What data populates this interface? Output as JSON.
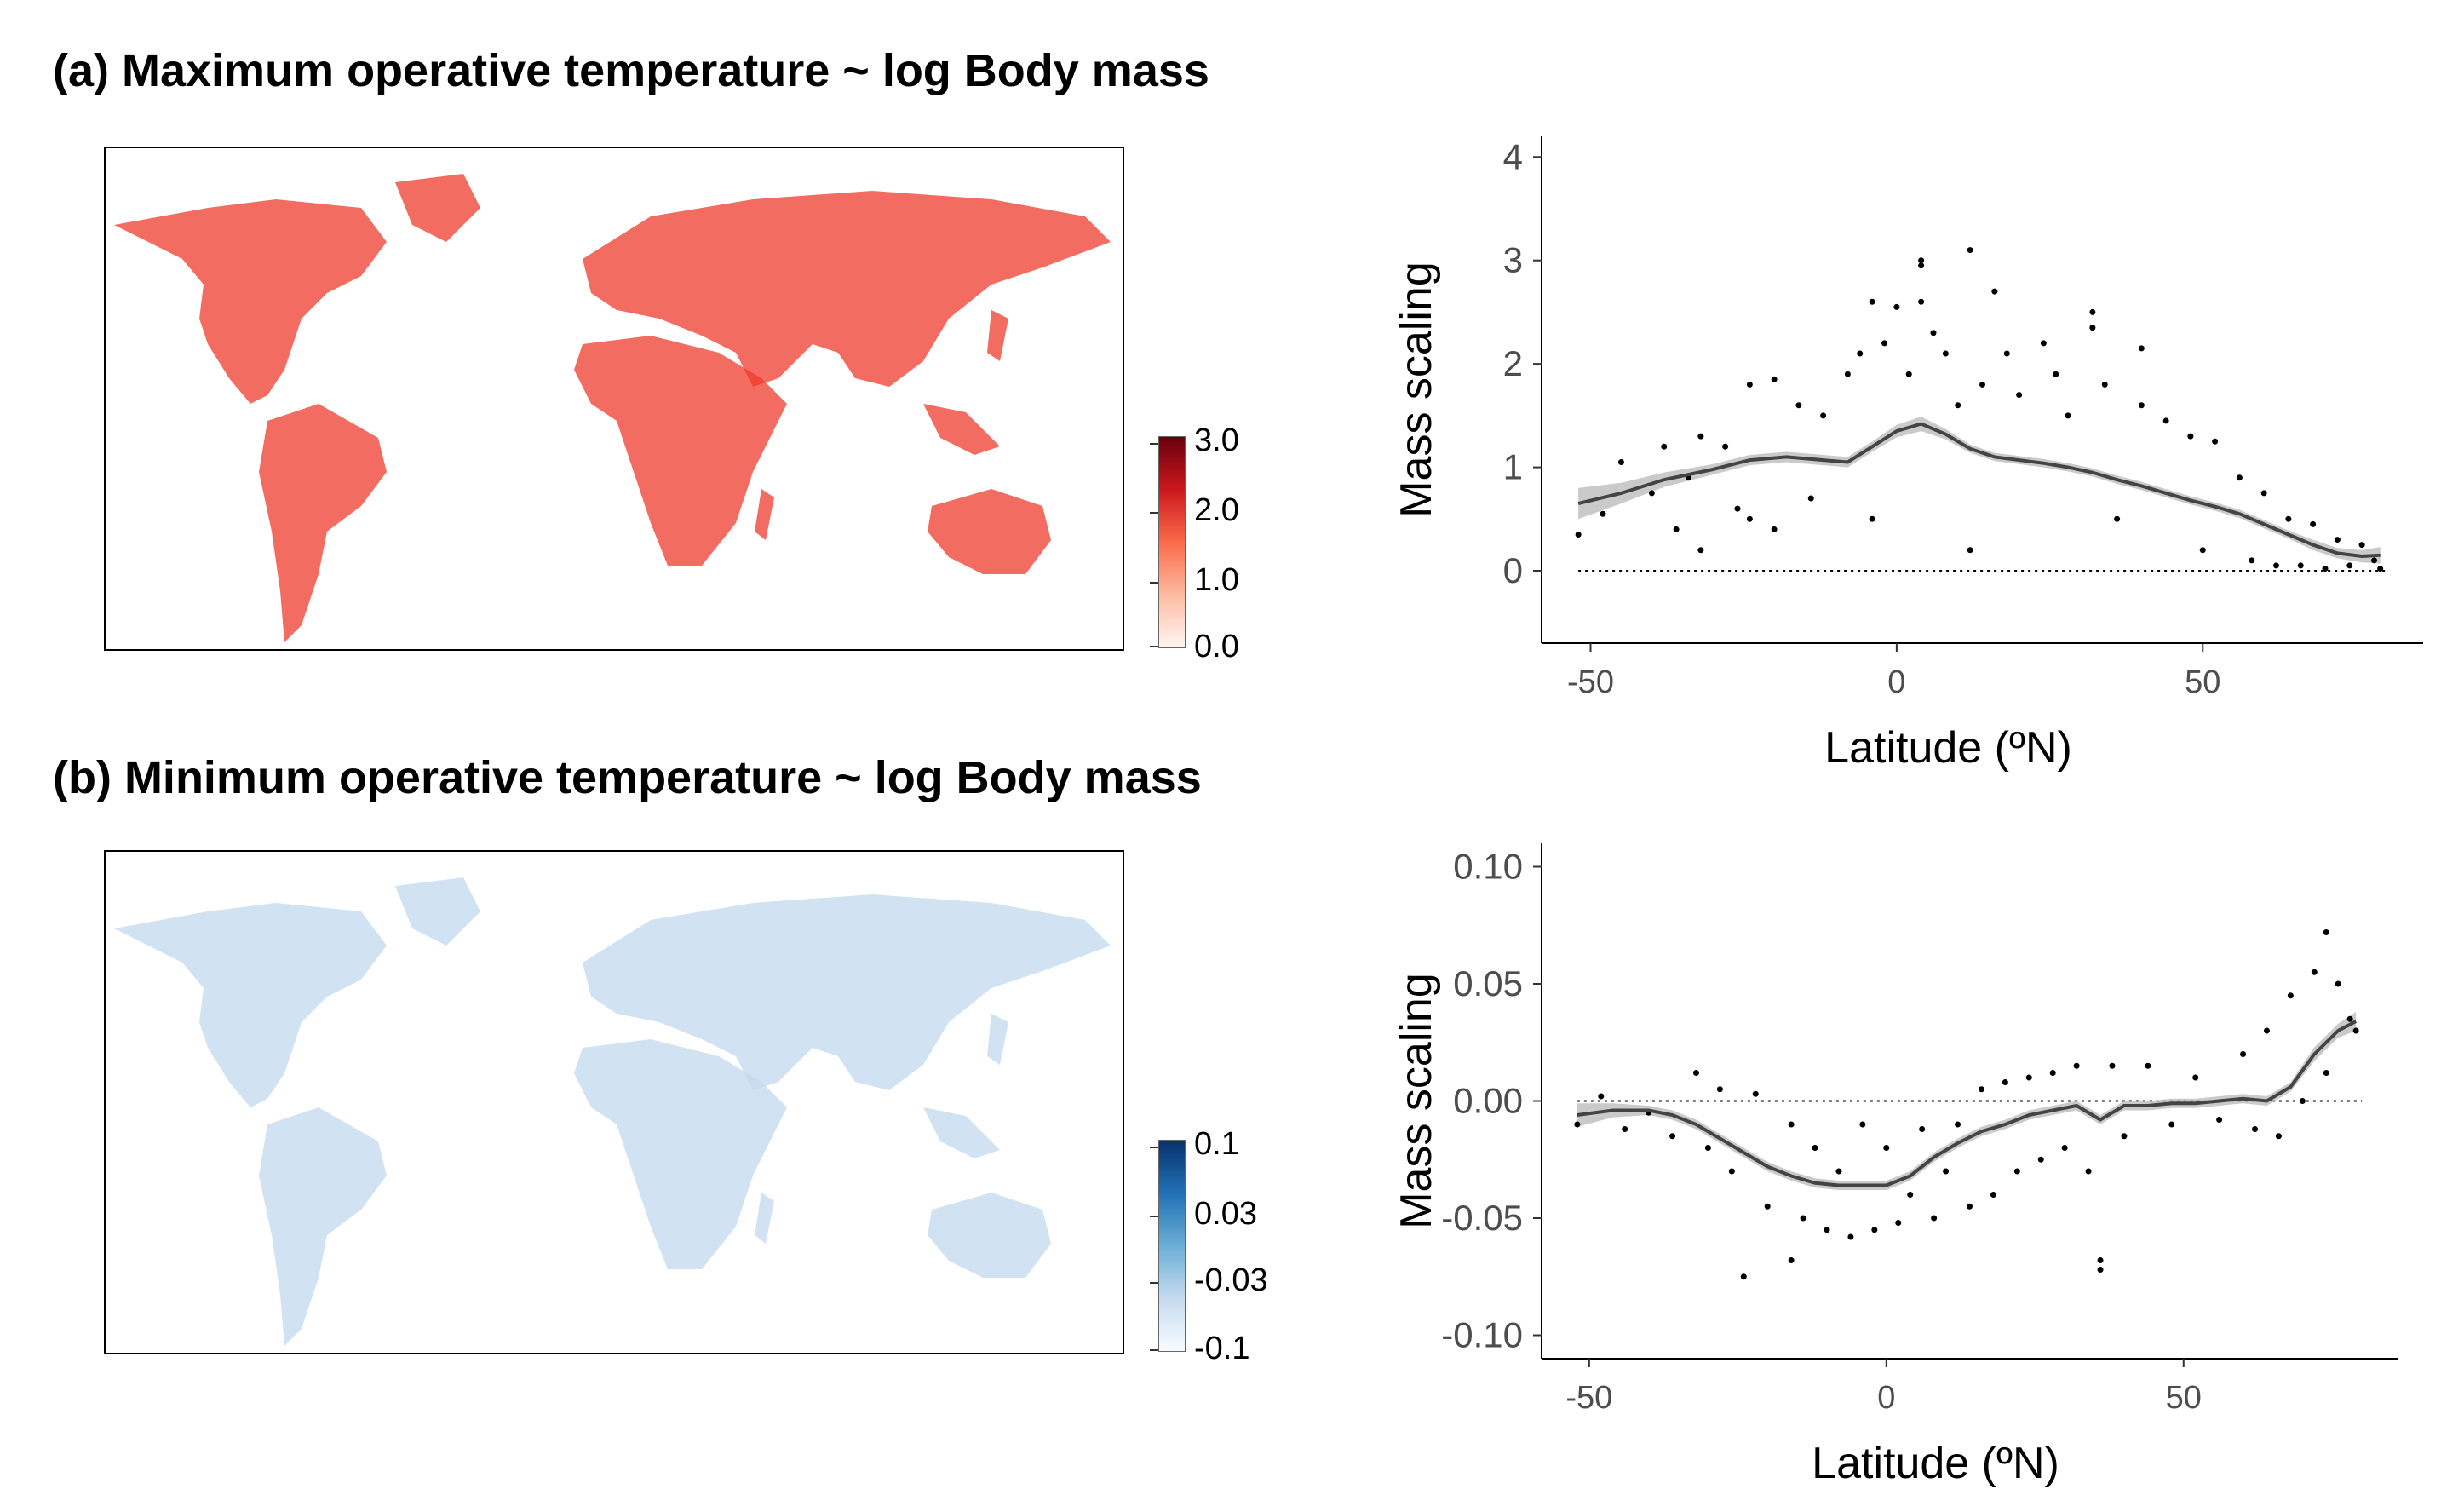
{
  "panels": {
    "a": {
      "title": "(a) Maximum operative temperature ~ log Body mass",
      "colorbar": {
        "labels": [
          "3.0",
          "2.0",
          "1.0",
          "0.0"
        ],
        "colors": [
          "#fff5f0",
          "#fcbba1",
          "#fb6a4a",
          "#cb181d",
          "#67000d"
        ]
      },
      "map_color": "#ef3b2c"
    },
    "b": {
      "title": "(b) Minimum operative temperature ~ log Body mass",
      "colorbar": {
        "labels": [
          "0.1",
          "0.03",
          "-0.03",
          "-0.1"
        ],
        "colors": [
          "#f7fbff",
          "#c6dbef",
          "#6baed6",
          "#2171b5",
          "#08306b"
        ]
      },
      "map_color": "#c6dbef"
    }
  },
  "chart_data": [
    {
      "type": "scatter",
      "title": "",
      "xlabel": "Latitude (ºN)",
      "ylabel": "Mass scaling",
      "xlim": [
        -58,
        86
      ],
      "ylim": [
        -0.7,
        4.2
      ],
      "xticks": [
        "-50",
        "0",
        "50"
      ],
      "yticks": [
        "0",
        "1",
        "2",
        "3",
        "4"
      ],
      "xtick_values": [
        -50,
        0,
        50
      ],
      "ytick_values": [
        0,
        1,
        2,
        3,
        4
      ],
      "reference_line": 0,
      "grid": false,
      "trend_x": [
        -52,
        -45,
        -38,
        -30,
        -24,
        -18,
        -12,
        -8,
        -4,
        0,
        4,
        8,
        12,
        16,
        20,
        24,
        28,
        32,
        36,
        40,
        44,
        48,
        52,
        56,
        60,
        64,
        68,
        72,
        76,
        79
      ],
      "trend_y": [
        0.65,
        0.75,
        0.88,
        0.98,
        1.07,
        1.1,
        1.07,
        1.05,
        1.2,
        1.35,
        1.42,
        1.32,
        1.18,
        1.1,
        1.07,
        1.04,
        1.0,
        0.95,
        0.88,
        0.82,
        0.75,
        0.68,
        0.62,
        0.55,
        0.45,
        0.35,
        0.25,
        0.17,
        0.14,
        0.15
      ],
      "ci_halfwidth": [
        0.15,
        0.1,
        0.07,
        0.05,
        0.05,
        0.05,
        0.05,
        0.05,
        0.05,
        0.06,
        0.07,
        0.05,
        0.04,
        0.04,
        0.04,
        0.04,
        0.04,
        0.04,
        0.04,
        0.04,
        0.04,
        0.04,
        0.04,
        0.04,
        0.04,
        0.04,
        0.05,
        0.05,
        0.06,
        0.08
      ],
      "points": [
        [
          -52,
          0.35
        ],
        [
          -48,
          0.55
        ],
        [
          -45,
          1.05
        ],
        [
          -40,
          0.75
        ],
        [
          -38,
          1.2
        ],
        [
          -36,
          0.4
        ],
        [
          -34,
          0.9
        ],
        [
          -32,
          1.3
        ],
        [
          -32,
          0.2
        ],
        [
          -28,
          1.2
        ],
        [
          -26,
          0.6
        ],
        [
          -24,
          1.8
        ],
        [
          -24,
          0.5
        ],
        [
          -20,
          1.85
        ],
        [
          -20,
          0.4
        ],
        [
          -16,
          1.6
        ],
        [
          -14,
          0.7
        ],
        [
          -12,
          1.5
        ],
        [
          -8,
          1.9
        ],
        [
          -6,
          2.1
        ],
        [
          -4,
          2.6
        ],
        [
          -4,
          0.5
        ],
        [
          -2,
          2.2
        ],
        [
          0,
          2.55
        ],
        [
          2,
          1.9
        ],
        [
          4,
          3.0
        ],
        [
          4,
          2.95
        ],
        [
          4,
          2.6
        ],
        [
          6,
          2.3
        ],
        [
          8,
          2.1
        ],
        [
          10,
          1.6
        ],
        [
          12,
          3.1
        ],
        [
          12,
          0.2
        ],
        [
          14,
          1.8
        ],
        [
          16,
          2.7
        ],
        [
          18,
          2.1
        ],
        [
          20,
          1.7
        ],
        [
          24,
          2.2
        ],
        [
          26,
          1.9
        ],
        [
          28,
          1.5
        ],
        [
          32,
          2.5
        ],
        [
          32,
          2.35
        ],
        [
          34,
          1.8
        ],
        [
          36,
          0.5
        ],
        [
          40,
          2.15
        ],
        [
          40,
          1.6
        ],
        [
          44,
          1.45
        ],
        [
          48,
          1.3
        ],
        [
          50,
          0.2
        ],
        [
          52,
          1.25
        ],
        [
          56,
          0.9
        ],
        [
          58,
          0.1
        ],
        [
          60,
          0.75
        ],
        [
          62,
          0.05
        ],
        [
          64,
          0.5
        ],
        [
          66,
          0.05
        ],
        [
          68,
          0.45
        ],
        [
          70,
          0.02
        ],
        [
          72,
          0.3
        ],
        [
          74,
          0.05
        ],
        [
          76,
          0.25
        ],
        [
          78,
          0.1
        ],
        [
          79,
          0.02
        ]
      ]
    },
    {
      "type": "scatter",
      "title": "",
      "xlabel": "Latitude (ºN)",
      "ylabel": "Mass scaling",
      "xlim": [
        -58,
        86
      ],
      "ylim": [
        -0.11,
        0.11
      ],
      "xticks": [
        "-50",
        "0",
        "50"
      ],
      "yticks": [
        "0.10",
        "0.05",
        "0.00",
        "-0.05",
        "-0.10"
      ],
      "xtick_values": [
        -50,
        0,
        50
      ],
      "ytick_values": [
        0.1,
        0.05,
        0.0,
        -0.05,
        -0.1
      ],
      "reference_line": 0,
      "grid": false,
      "trend_x": [
        -52,
        -46,
        -40,
        -36,
        -32,
        -28,
        -24,
        -20,
        -16,
        -12,
        -8,
        -4,
        0,
        4,
        8,
        12,
        16,
        20,
        24,
        28,
        32,
        36,
        40,
        44,
        48,
        52,
        56,
        60,
        64,
        68,
        72,
        76,
        79
      ],
      "trend_y": [
        -0.006,
        -0.004,
        -0.004,
        -0.006,
        -0.01,
        -0.016,
        -0.022,
        -0.028,
        -0.032,
        -0.035,
        -0.036,
        -0.036,
        -0.036,
        -0.032,
        -0.024,
        -0.018,
        -0.013,
        -0.01,
        -0.006,
        -0.004,
        -0.002,
        -0.008,
        -0.002,
        -0.002,
        -0.001,
        -0.001,
        0.0,
        0.001,
        0.0,
        0.006,
        0.02,
        0.03,
        0.034
      ],
      "ci_halfwidth": [
        0.005,
        0.003,
        0.002,
        0.002,
        0.002,
        0.002,
        0.002,
        0.002,
        0.002,
        0.002,
        0.002,
        0.002,
        0.002,
        0.002,
        0.002,
        0.002,
        0.002,
        0.002,
        0.002,
        0.002,
        0.002,
        0.002,
        0.002,
        0.002,
        0.002,
        0.002,
        0.002,
        0.002,
        0.002,
        0.002,
        0.003,
        0.003,
        0.004
      ],
      "points": [
        [
          -52,
          -0.01
        ],
        [
          -48,
          0.002
        ],
        [
          -44,
          -0.012
        ],
        [
          -40,
          -0.005
        ],
        [
          -36,
          -0.015
        ],
        [
          -32,
          0.012
        ],
        [
          -30,
          -0.02
        ],
        [
          -28,
          0.005
        ],
        [
          -26,
          -0.03
        ],
        [
          -24,
          -0.075
        ],
        [
          -22,
          0.003
        ],
        [
          -20,
          -0.045
        ],
        [
          -16,
          -0.068
        ],
        [
          -16,
          -0.01
        ],
        [
          -14,
          -0.05
        ],
        [
          -12,
          -0.02
        ],
        [
          -10,
          -0.055
        ],
        [
          -8,
          -0.03
        ],
        [
          -6,
          -0.058
        ],
        [
          -4,
          -0.01
        ],
        [
          -2,
          -0.055
        ],
        [
          0,
          -0.02
        ],
        [
          2,
          -0.052
        ],
        [
          4,
          -0.04
        ],
        [
          6,
          -0.012
        ],
        [
          8,
          -0.05
        ],
        [
          10,
          -0.03
        ],
        [
          12,
          -0.01
        ],
        [
          14,
          -0.045
        ],
        [
          16,
          0.005
        ],
        [
          18,
          -0.04
        ],
        [
          20,
          0.008
        ],
        [
          22,
          -0.03
        ],
        [
          24,
          0.01
        ],
        [
          26,
          -0.025
        ],
        [
          28,
          0.012
        ],
        [
          30,
          -0.02
        ],
        [
          32,
          0.015
        ],
        [
          34,
          -0.03
        ],
        [
          36,
          -0.072
        ],
        [
          36,
          -0.068
        ],
        [
          38,
          0.015
        ],
        [
          40,
          -0.015
        ],
        [
          44,
          0.015
        ],
        [
          48,
          -0.01
        ],
        [
          52,
          0.01
        ],
        [
          56,
          -0.008
        ],
        [
          60,
          0.02
        ],
        [
          62,
          -0.012
        ],
        [
          64,
          0.03
        ],
        [
          66,
          -0.015
        ],
        [
          68,
          0.045
        ],
        [
          70,
          0.0
        ],
        [
          72,
          0.055
        ],
        [
          74,
          0.072
        ],
        [
          74,
          0.012
        ],
        [
          76,
          0.05
        ],
        [
          78,
          0.035
        ],
        [
          79,
          0.03
        ]
      ]
    }
  ]
}
